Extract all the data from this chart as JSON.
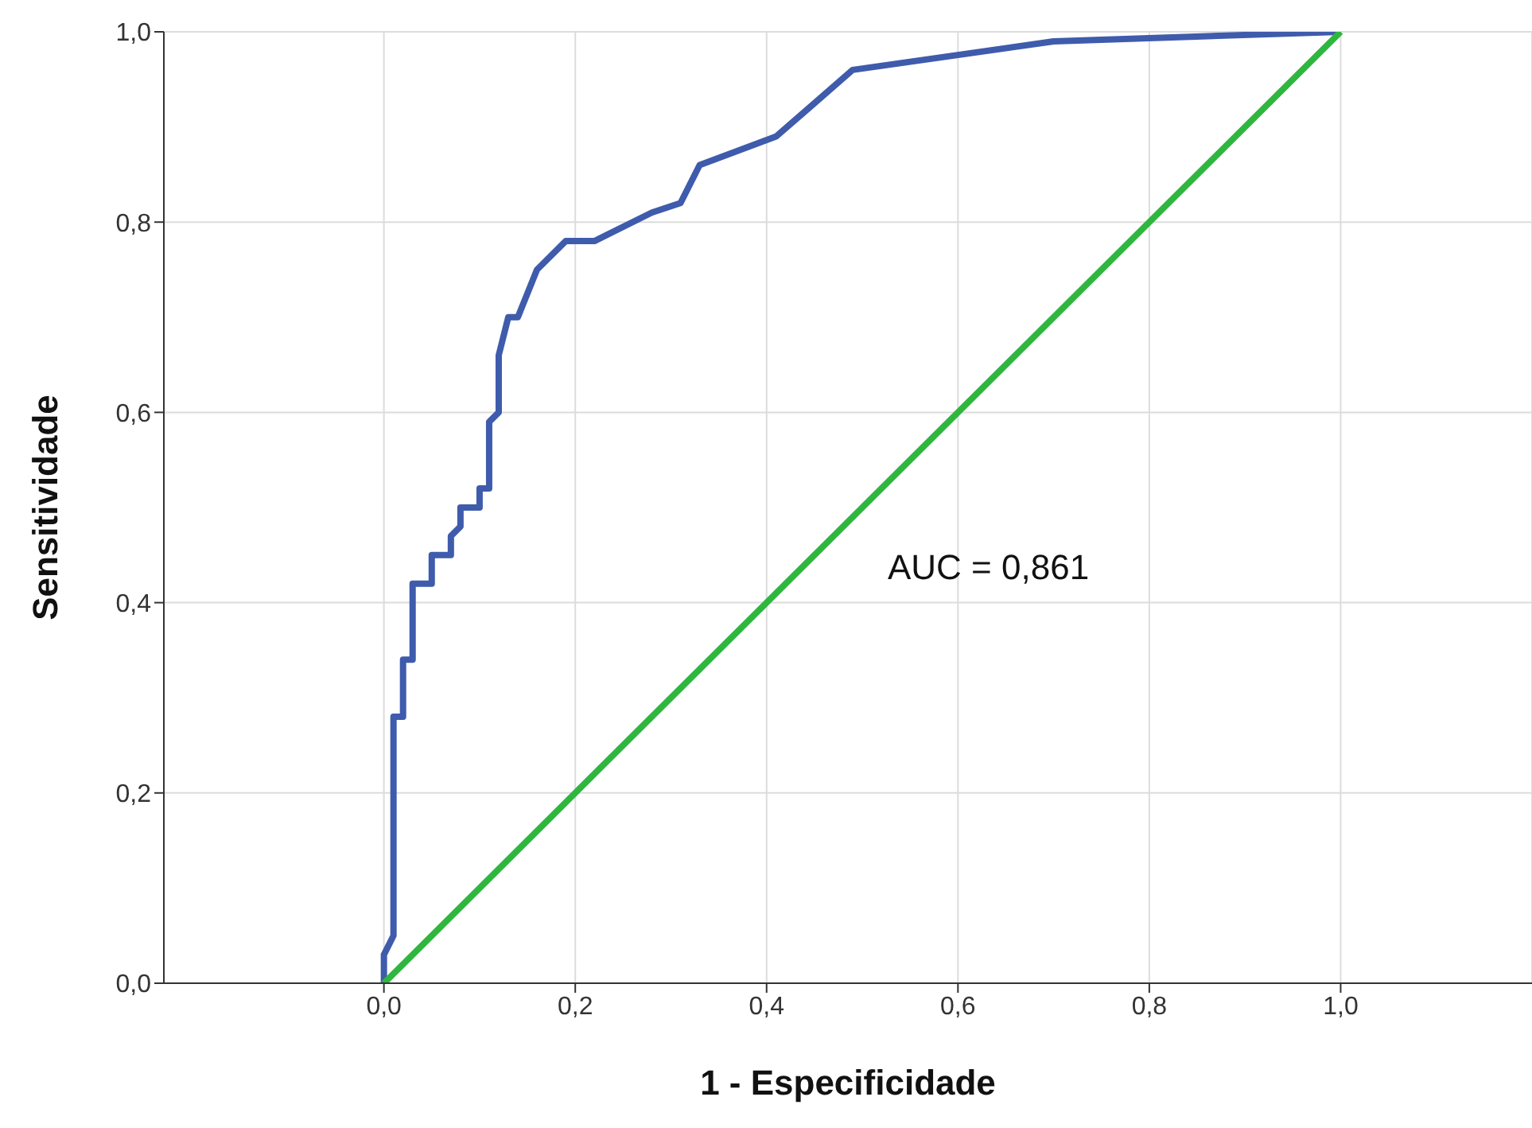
{
  "chart_data": {
    "type": "line",
    "xlabel": "1 - Especificidade",
    "ylabel": "Sensitividade",
    "annotations": [
      "AUC = 0,861"
    ],
    "xlim": [
      -0.23,
      1.2
    ],
    "ylim": [
      0,
      1
    ],
    "xticks": [
      {
        "value": 0,
        "label": "0,0"
      },
      {
        "value": 0.2,
        "label": "0,2"
      },
      {
        "value": 0.4,
        "label": "0,4"
      },
      {
        "value": 0.6,
        "label": "0,6"
      },
      {
        "value": 0.8,
        "label": "0,8"
      },
      {
        "value": 1,
        "label": "1,0"
      }
    ],
    "yticks": [
      {
        "value": 0,
        "label": "0,0"
      },
      {
        "value": 0.2,
        "label": "0,2"
      },
      {
        "value": 0.4,
        "label": "0,4"
      },
      {
        "value": 0.6,
        "label": "0,6"
      },
      {
        "value": 0.8,
        "label": "0,8"
      },
      {
        "value": 1,
        "label": "1,0"
      }
    ],
    "grid": true,
    "marker": "none",
    "line_style": "solid",
    "series": [
      {
        "color": "#3f5bac",
        "x": [
          0,
          0,
          0.01,
          0.01,
          0.02,
          0.02,
          0.03,
          0.03,
          0.05,
          0.05,
          0.07,
          0.07,
          0.08,
          0.08,
          0.1,
          0.1,
          0.11,
          0.11,
          0.12,
          0.12,
          0.13,
          0.14,
          0.16,
          0.19,
          0.22,
          0.28,
          0.31,
          0.33,
          0.41,
          0.49,
          0.7,
          1
        ],
        "values": [
          0,
          0.03,
          0.05,
          0.28,
          0.28,
          0.34,
          0.34,
          0.42,
          0.42,
          0.45,
          0.45,
          0.47,
          0.48,
          0.5,
          0.5,
          0.52,
          0.52,
          0.59,
          0.6,
          0.66,
          0.7,
          0.7,
          0.75,
          0.78,
          0.78,
          0.81,
          0.82,
          0.86,
          0.89,
          0.96,
          0.99,
          1
        ]
      },
      {
        "color": "#2fb63f",
        "x": [
          0,
          1
        ],
        "values": [
          0,
          1
        ]
      }
    ]
  }
}
